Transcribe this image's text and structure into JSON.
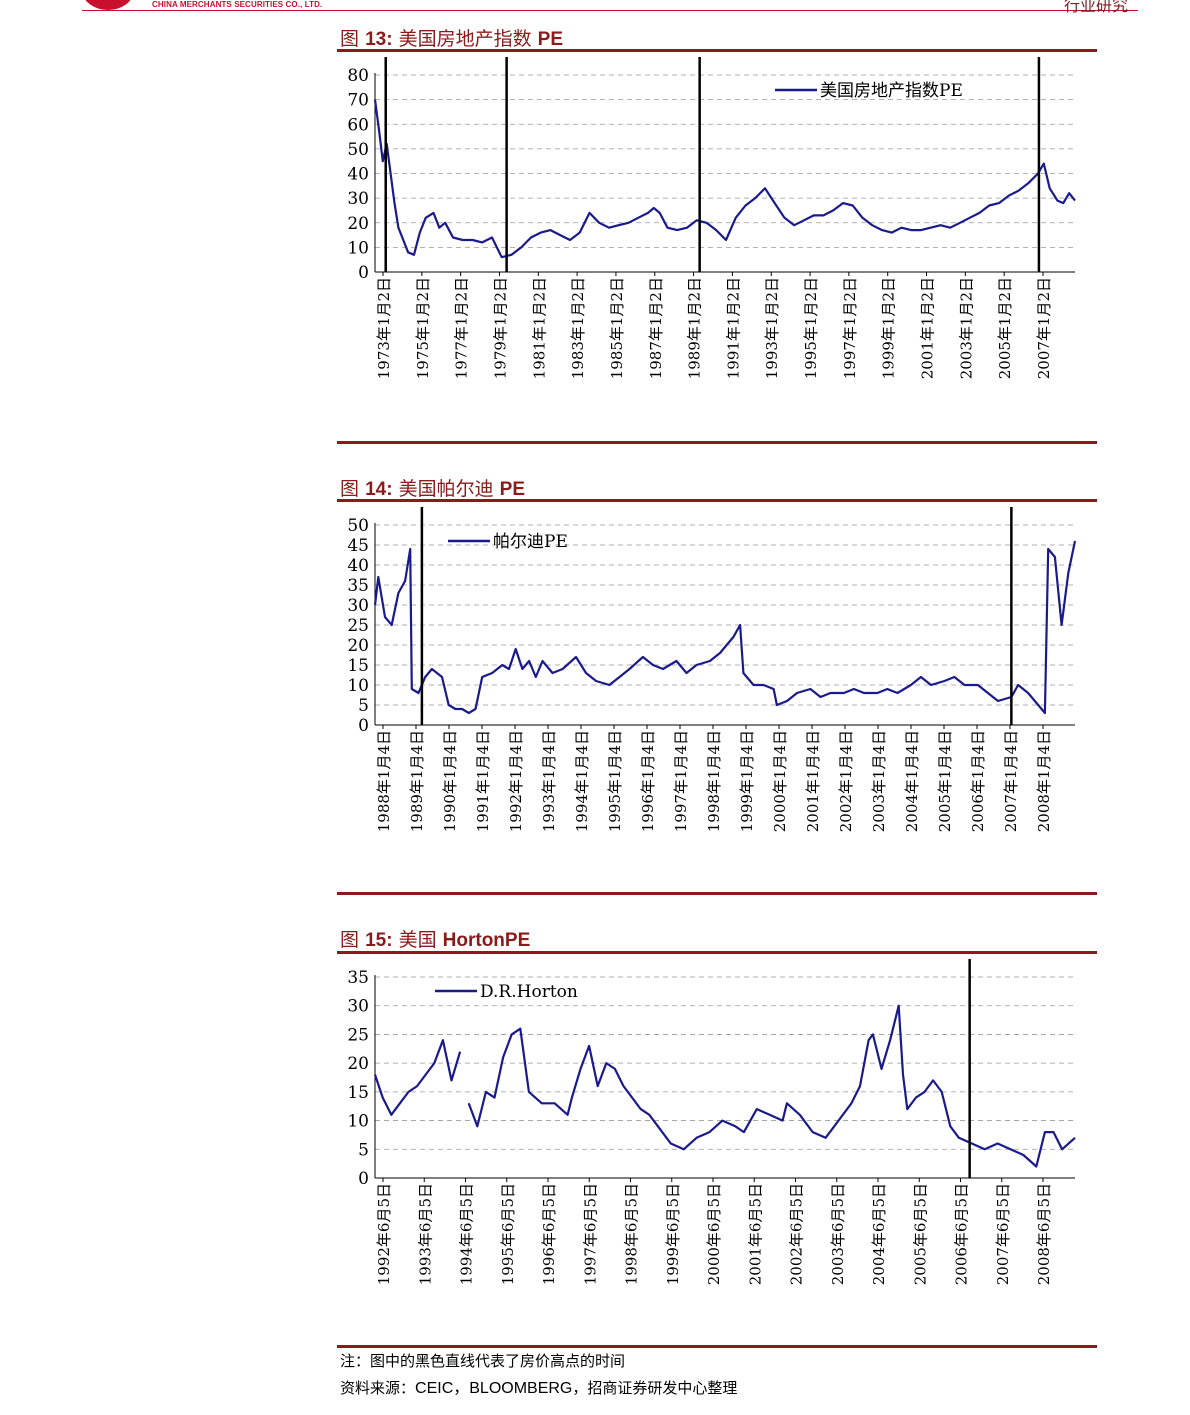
{
  "header": {
    "company_en": "CHINA MERCHANTS SECURITIES CO., LTD.",
    "section": "行业研究",
    "brand_color": "#c8102e"
  },
  "colors": {
    "series": "#1a1a8c",
    "title": "#8b1a1a",
    "marker": "#000000",
    "grid": "#999999"
  },
  "figures": [
    {
      "label": "图",
      "number": "13:",
      "title": "美国房地产指数",
      "title_latin": "PE"
    },
    {
      "label": "图",
      "number": "14:",
      "title": "美国帕尔迪",
      "title_latin": "PE"
    },
    {
      "label": "图",
      "number": "15:",
      "title": "美国",
      "title_latin": "HortonPE"
    }
  ],
  "notes": {
    "note_prefix": "注：",
    "note_text": "图中的黑色直线代表了房价高点的时间",
    "source_prefix": "资料来源：",
    "source_latin": "CEIC，BLOOMBERG",
    "source_suffix": "，招商证券研发中心整理"
  },
  "chart_data": [
    {
      "type": "line",
      "ylim": [
        0,
        80
      ],
      "yticks": [
        0,
        10,
        20,
        30,
        40,
        50,
        60,
        70,
        80
      ],
      "xlabels": [
        "1973年1月2日",
        "1975年1月2日",
        "1977年1月2日",
        "1979年1月2日",
        "1981年1月2日",
        "1983年1月2日",
        "1985年1月2日",
        "1987年1月2日",
        "1989年1月2日",
        "1991年1月2日",
        "1993年1月2日",
        "1995年1月2日",
        "1997年1月2日",
        "1999年1月2日",
        "2001年1月2日",
        "2003年1月2日",
        "2005年1月2日",
        "2007年1月2日"
      ],
      "xlim": [
        1973.0,
        2008.9
      ],
      "grid": true,
      "legend_position": "top-right",
      "series": [
        {
          "name": "美国房地产指数PE",
          "x": [
            1973.0,
            1973.2,
            1973.4,
            1973.6,
            1973.8,
            1974.0,
            1974.2,
            1974.4,
            1974.7,
            1975.0,
            1975.3,
            1975.6,
            1976.0,
            1976.3,
            1976.6,
            1977.0,
            1977.5,
            1978.0,
            1978.5,
            1979.0,
            1979.5,
            1980.0,
            1980.5,
            1981.0,
            1981.5,
            1982.0,
            1982.5,
            1983.0,
            1983.5,
            1984.0,
            1984.5,
            1985.0,
            1985.5,
            1986.0,
            1986.5,
            1987.0,
            1987.3,
            1987.6,
            1988.0,
            1988.5,
            1989.0,
            1989.5,
            1990.0,
            1990.5,
            1991.0,
            1991.5,
            1992.0,
            1992.5,
            1993.0,
            1993.5,
            1994.0,
            1994.5,
            1995.0,
            1995.5,
            1996.0,
            1996.5,
            1997.0,
            1997.5,
            1998.0,
            1998.5,
            1999.0,
            1999.5,
            2000.0,
            2000.5,
            2001.0,
            2001.5,
            2002.0,
            2002.5,
            2003.0,
            2003.5,
            2004.0,
            2004.5,
            2005.0,
            2005.5,
            2006.0,
            2006.5,
            2007.0,
            2007.3,
            2007.6,
            2008.0,
            2008.3,
            2008.6,
            2008.9
          ],
          "y": [
            70,
            58,
            45,
            52,
            40,
            28,
            18,
            14,
            8,
            7,
            16,
            22,
            24,
            18,
            20,
            14,
            13,
            13,
            12,
            14,
            6,
            7,
            10,
            14,
            16,
            17,
            15,
            13,
            16,
            24,
            20,
            18,
            19,
            20,
            22,
            24,
            26,
            24,
            18,
            17,
            18,
            21,
            20,
            17,
            13,
            22,
            27,
            30,
            34,
            28,
            22,
            19,
            21,
            23,
            23,
            25,
            28,
            27,
            22,
            19,
            17,
            16,
            18,
            17,
            17,
            18,
            19,
            18,
            20,
            22,
            24,
            27,
            28,
            31,
            33,
            36,
            40,
            44,
            34,
            29,
            28,
            32,
            29
          ]
        }
      ],
      "markers": [
        1973.55,
        1979.75,
        1989.65,
        2007.05
      ]
    },
    {
      "type": "line",
      "ylim": [
        0,
        50
      ],
      "yticks": [
        0,
        5,
        10,
        15,
        20,
        25,
        30,
        35,
        40,
        45,
        50
      ],
      "xlabels": [
        "1988年1月4日",
        "1989年1月4日",
        "1990年1月4日",
        "1991年1月4日",
        "1992年1月4日",
        "1993年1月4日",
        "1994年1月4日",
        "1995年1月4日",
        "1996年1月4日",
        "1997年1月4日",
        "1998年1月4日",
        "1999年1月4日",
        "2000年1月4日",
        "2001年1月4日",
        "2002年1月4日",
        "2003年1月4日",
        "2004年1月4日",
        "2005年1月4日",
        "2006年1月4日",
        "2007年1月4日",
        "2008年1月4日"
      ],
      "xlim": [
        1988.0,
        2008.9
      ],
      "grid": true,
      "legend_position": "top-left",
      "series": [
        {
          "name": "帕尔迪PE",
          "x": [
            1988.0,
            1988.1,
            1988.3,
            1988.5,
            1988.7,
            1988.9,
            1989.05,
            1989.1,
            1989.3,
            1989.5,
            1989.7,
            1990.0,
            1990.2,
            1990.4,
            1990.6,
            1990.8,
            1991.0,
            1991.2,
            1991.5,
            1991.8,
            1992.0,
            1992.2,
            1992.4,
            1992.6,
            1992.8,
            1993.0,
            1993.3,
            1993.6,
            1994.0,
            1994.3,
            1994.6,
            1995.0,
            1995.3,
            1995.6,
            1996.0,
            1996.3,
            1996.6,
            1997.0,
            1997.3,
            1997.6,
            1998.0,
            1998.3,
            1998.5,
            1998.7,
            1998.9,
            1999.0,
            1999.3,
            1999.6,
            1999.9,
            2000.0,
            2000.3,
            2000.6,
            2001.0,
            2001.3,
            2001.6,
            2002.0,
            2002.3,
            2002.6,
            2003.0,
            2003.3,
            2003.6,
            2004.0,
            2004.3,
            2004.6,
            2005.0,
            2005.3,
            2005.6,
            2006.0,
            2006.3,
            2006.6,
            2007.0,
            2007.2,
            2007.5,
            2007.8,
            2008.0,
            2008.1,
            2008.3,
            2008.5,
            2008.7,
            2008.9
          ],
          "y": [
            30,
            37,
            27,
            25,
            33,
            36,
            44,
            9,
            8,
            12,
            14,
            12,
            5,
            4,
            4,
            3,
            4,
            12,
            13,
            15,
            14,
            19,
            14,
            16,
            12,
            16,
            13,
            14,
            17,
            13,
            11,
            10,
            12,
            14,
            17,
            15,
            14,
            16,
            13,
            15,
            16,
            18,
            20,
            22,
            25,
            13,
            10,
            10,
            9,
            5,
            6,
            8,
            9,
            7,
            8,
            8,
            9,
            8,
            8,
            9,
            8,
            10,
            12,
            10,
            11,
            12,
            10,
            10,
            8,
            6,
            7,
            10,
            8,
            5,
            3,
            44,
            42,
            25,
            38,
            46
          ]
        }
      ],
      "markers": [
        1989.4,
        2007.0
      ]
    },
    {
      "type": "line",
      "ylim": [
        0,
        35
      ],
      "yticks": [
        0,
        5,
        10,
        15,
        20,
        25,
        30,
        35
      ],
      "xlabels": [
        "1992年6月5日",
        "1993年6月5日",
        "1994年6月5日",
        "1995年6月5日",
        "1996年6月5日",
        "1997年6月5日",
        "1998年6月5日",
        "1999年6月5日",
        "2000年6月5日",
        "2001年6月5日",
        "2002年6月5日",
        "2003年6月5日",
        "2004年6月5日",
        "2005年6月5日",
        "2006年6月5日",
        "2007年6月5日",
        "2008年6月5日"
      ],
      "xlim": [
        1992.42,
        2008.7
      ],
      "grid": true,
      "legend_position": "top-left",
      "series": [
        {
          "name": "D.R.Horton",
          "x": [
            1992.42,
            1992.6,
            1992.8,
            1993.0,
            1993.2,
            1993.4,
            1993.6,
            1993.8,
            1994.0,
            1994.2,
            1994.4
          ],
          "y": [
            18,
            14,
            11,
            13,
            15,
            16,
            18,
            20,
            24,
            17,
            22
          ]
        },
        {
          "name": "",
          "x": [
            1994.6,
            1994.8,
            1995.0,
            1995.2,
            1995.4,
            1995.6,
            1995.8,
            1996.0,
            1996.3,
            1996.6,
            1996.9,
            1997.0,
            1997.2,
            1997.4,
            1997.6,
            1997.8,
            1998.0,
            1998.2,
            1998.4,
            1998.6,
            1998.8,
            1999.0,
            1999.3,
            1999.6,
            1999.9,
            2000.2,
            2000.5,
            2000.8,
            2001.0,
            2001.3,
            2001.6,
            2001.9,
            2002.0,
            2002.3,
            2002.6,
            2002.9,
            2003.2,
            2003.5,
            2003.7,
            2003.9,
            2004.0,
            2004.2,
            2004.4,
            2004.6,
            2004.7,
            2004.8,
            2005.0,
            2005.2,
            2005.4,
            2005.6,
            2005.8,
            2006.0,
            2006.3,
            2006.6,
            2006.9,
            2007.2,
            2007.5,
            2007.8,
            2008.0,
            2008.2,
            2008.4,
            2008.7
          ],
          "y": [
            13,
            9,
            15,
            14,
            21,
            25,
            26,
            15,
            13,
            13,
            11,
            14,
            19,
            23,
            16,
            20,
            19,
            16,
            14,
            12,
            11,
            9,
            6,
            5,
            7,
            8,
            10,
            9,
            8,
            12,
            11,
            10,
            13,
            11,
            8,
            7,
            10,
            13,
            16,
            24,
            25,
            19,
            24,
            30,
            18,
            12,
            14,
            15,
            17,
            15,
            9,
            7,
            6,
            5,
            6,
            5,
            4,
            2,
            8,
            8,
            5,
            7
          ]
        }
      ],
      "markers": [
        2006.25
      ]
    }
  ]
}
